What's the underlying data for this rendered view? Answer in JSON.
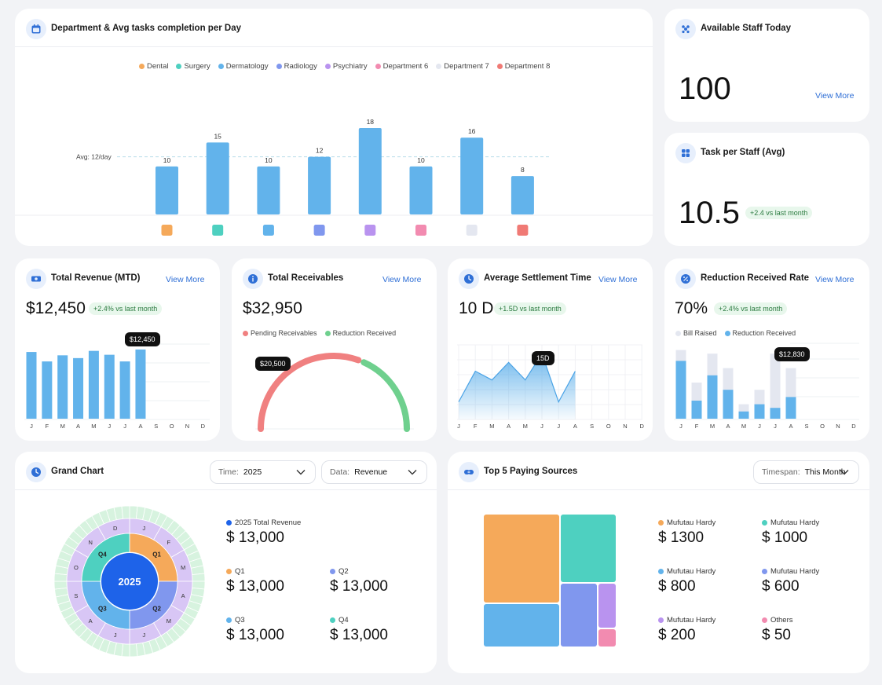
{
  "colors": {
    "accent": "#2f6fd6",
    "bar_blue": "#62b3eb",
    "dental": "#f5a95a",
    "surgery": "#4ed0c0",
    "dermatology": "#62b3eb",
    "radiology": "#8097ee",
    "psychiatry": "#b993ef",
    "dept6": "#f28bb0",
    "dept7": "#e4e7f0",
    "dept8": "#f07a75",
    "green": "#6fd08e",
    "red": "#f08080"
  },
  "dept_card": {
    "title": "Department & Avg tasks completion per Day",
    "icon": "calendar-icon",
    "legend": [
      {
        "label": "Dental",
        "color": "#f5a95a"
      },
      {
        "label": "Surgery",
        "color": "#4ed0c0"
      },
      {
        "label": "Dermatology",
        "color": "#62b3eb"
      },
      {
        "label": "Radiology",
        "color": "#8097ee"
      },
      {
        "label": "Psychiatry",
        "color": "#b993ef"
      },
      {
        "label": "Department 6",
        "color": "#f28bb0"
      },
      {
        "label": "Department 7",
        "color": "#e4e7f0"
      },
      {
        "label": "Department 8",
        "color": "#f07a75"
      }
    ],
    "avg_label": "Avg: 12/day"
  },
  "chart_data": [
    {
      "type": "bar",
      "categories": [
        "Dental",
        "Surgery",
        "Dermatology",
        "Radiology",
        "Psychiatry",
        "Department 6",
        "Department 7",
        "Department 8"
      ],
      "values": [
        10,
        15,
        10,
        12,
        18,
        10,
        16,
        8
      ],
      "reference_line": 12,
      "ylim": [
        0,
        18
      ]
    },
    {
      "type": "bar",
      "categories": [
        "J",
        "F",
        "M",
        "A",
        "M",
        "J",
        "J",
        "A",
        "S",
        "O",
        "N",
        "D"
      ],
      "values": [
        12000,
        10300,
        11400,
        10900,
        12200,
        11500,
        10300,
        12450,
        null,
        null,
        null,
        null
      ],
      "highlight_label": "$12,450"
    },
    {
      "type": "pie",
      "series": [
        {
          "name": "Pending Receivables",
          "values": [
            20500
          ]
        },
        {
          "name": "Reduction Received",
          "values": [
            12450
          ]
        }
      ],
      "highlight_label": "$20,500"
    },
    {
      "type": "area",
      "categories": [
        "J",
        "F",
        "M",
        "A",
        "M",
        "J",
        "J",
        "A",
        "S",
        "O",
        "N",
        "D"
      ],
      "values": [
        4,
        11,
        9,
        13,
        9,
        15,
        4,
        11,
        null,
        null,
        null,
        null
      ],
      "highlight_label": "15D"
    },
    {
      "type": "bar",
      "categories": [
        "J",
        "F",
        "M",
        "A",
        "M",
        "J",
        "J",
        "A",
        "S",
        "O",
        "N",
        "D"
      ],
      "series": [
        {
          "name": "Bill Raised",
          "values": [
            19,
            10,
            18,
            14,
            4,
            8,
            18,
            14,
            null,
            null,
            null,
            null
          ]
        },
        {
          "name": "Reduction Received",
          "values": [
            16,
            5,
            12,
            8,
            2,
            4,
            3,
            6,
            null,
            null,
            null,
            null
          ]
        }
      ],
      "highlight_label": "$12,830"
    }
  ],
  "available_staff": {
    "title": "Available Staff Today",
    "icon": "team-icon",
    "value": "100",
    "view_more": "View More"
  },
  "task_per_staff": {
    "title": "Task per Staff (Avg)",
    "icon": "grid-icon",
    "value": "10.5",
    "delta": "+2.4 vs last month"
  },
  "total_revenue": {
    "title": "Total Revenue (MTD)",
    "icon": "money-icon",
    "view_more": "View More",
    "value": "$12,450",
    "delta": "+2.4% vs last month",
    "tooltip": "$12,450"
  },
  "total_receivables": {
    "title": "Total Receivables",
    "icon": "info-icon",
    "view_more": "View More",
    "value": "$32,950",
    "legend": [
      "Pending Receivables",
      "Reduction Received"
    ],
    "tooltip": "$20,500"
  },
  "settlement": {
    "title": "Average Settlement Time",
    "icon": "clock-icon",
    "view_more": "View More",
    "value": "10 D",
    "delta": "+1.5D vs last month",
    "tooltip": "15D"
  },
  "reduction": {
    "title": "Reduction Received Rate",
    "icon": "percent-icon",
    "view_more": "View More",
    "value": "70%",
    "delta": "+2.4% vs last month",
    "legend": [
      "Bill Raised",
      "Reduction Received"
    ],
    "tooltip": "$12,830"
  },
  "grand_chart": {
    "title": "Grand Chart",
    "icon": "clock-icon",
    "time_label": "Time:",
    "time_value": "2025",
    "data_label": "Data:",
    "data_value": "Revenue",
    "center": "2025",
    "quarters": [
      "Q1",
      "Q2",
      "Q3",
      "Q4"
    ],
    "months": [
      "J",
      "F",
      "M",
      "A",
      "M",
      "J",
      "J",
      "A",
      "S",
      "O",
      "N",
      "D"
    ],
    "items": [
      {
        "label": "2025 Total Revenue",
        "amount": "$ 13,000",
        "color": "#1e63e9"
      },
      {
        "label": "Q1",
        "amount": "$ 13,000",
        "color": "#f5a95a"
      },
      {
        "label": "Q2",
        "amount": "$ 13,000",
        "color": "#8097ee"
      },
      {
        "label": "Q3",
        "amount": "$ 13,000",
        "color": "#62b3eb"
      },
      {
        "label": "Q4",
        "amount": "$ 13,000",
        "color": "#4ed0c0"
      }
    ]
  },
  "top5": {
    "title": "Top 5  Paying Sources",
    "icon": "link-icon",
    "timespan_label": "Timespan:",
    "timespan_value": "This Month",
    "items": [
      {
        "label": "Mufutau Hardy",
        "amount": "$ 1300",
        "color": "#f5a95a"
      },
      {
        "label": "Mufutau Hardy",
        "amount": "$ 1000",
        "color": "#4ed0c0"
      },
      {
        "label": "Mufutau Hardy",
        "amount": "$ 800",
        "color": "#62b3eb"
      },
      {
        "label": "Mufutau Hardy",
        "amount": "$ 600",
        "color": "#8097ee"
      },
      {
        "label": "Mufutau Hardy",
        "amount": "$ 200",
        "color": "#b993ef"
      },
      {
        "label": "Others",
        "amount": "$ 50",
        "color": "#f28bb0"
      }
    ]
  }
}
